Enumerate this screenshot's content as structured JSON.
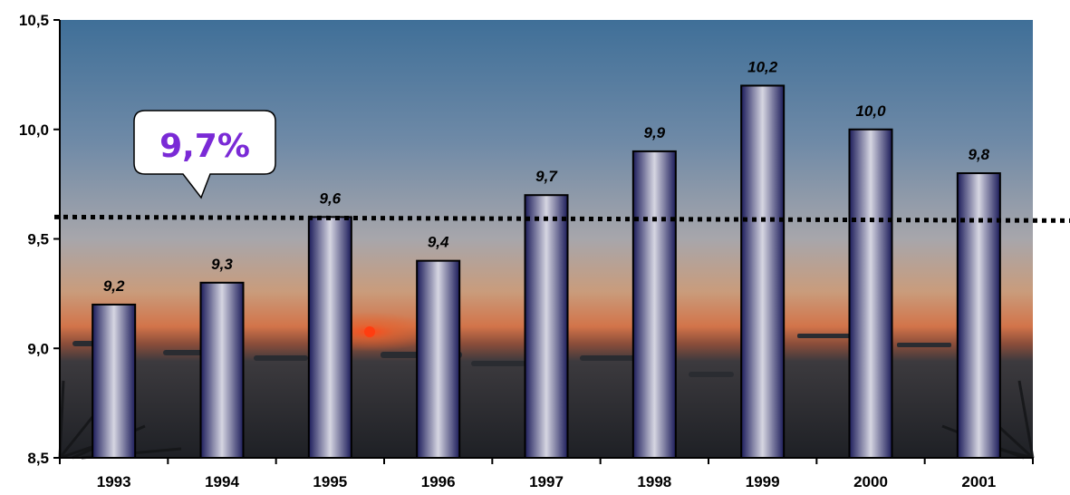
{
  "chart_data": {
    "type": "bar",
    "title": "",
    "xlabel": "",
    "ylabel": "",
    "categories": [
      "1993",
      "1994",
      "1995",
      "1996",
      "1997",
      "1998",
      "1999",
      "2000",
      "2001"
    ],
    "values": [
      9.2,
      9.3,
      9.6,
      9.4,
      9.7,
      9.9,
      10.2,
      10.0,
      9.8
    ],
    "value_labels": [
      "9,2",
      "9,3",
      "9,6",
      "9,4",
      "9,7",
      "9,9",
      "10,2",
      "10,0",
      "9,8"
    ],
    "ylim": [
      8.5,
      10.5
    ],
    "y_ticks": [
      8.5,
      9.0,
      9.5,
      10.0,
      10.5
    ],
    "y_tick_labels": [
      "8,5",
      "9,0",
      "9,5",
      "10,0",
      "10,5"
    ],
    "grid": false,
    "legend": "none",
    "background": "sunset-harbor-photo",
    "average_line": {
      "value": 9.6,
      "style": "dotted",
      "color": "#000000"
    },
    "callout": {
      "text": "9,7%",
      "color": "#7a2ad6"
    },
    "bar_colors": {
      "edge": "#1c1c5a",
      "center": "#d6d6e2"
    }
  }
}
